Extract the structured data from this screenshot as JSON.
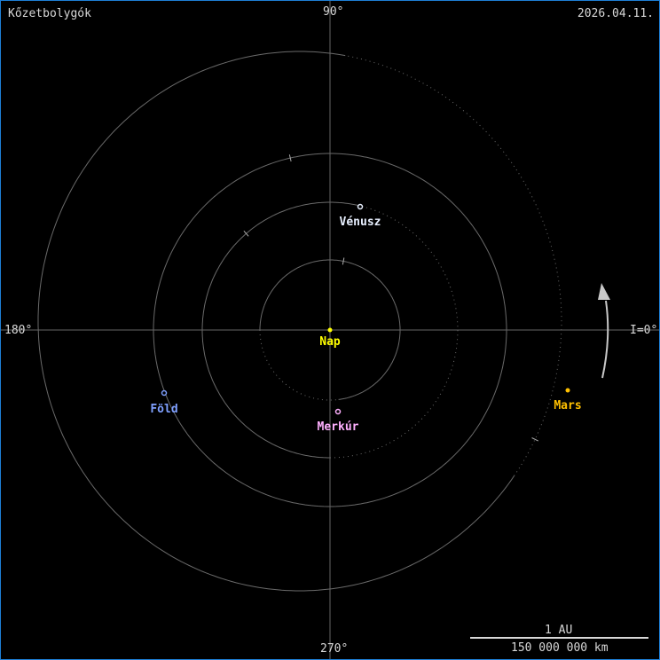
{
  "title": "Kőzetbolygók",
  "date": "2026.04.11.",
  "axis_labels": {
    "top": "90°",
    "left": "180°",
    "bottom": "270°",
    "right": "I=0°"
  },
  "scale": {
    "top": "1 AU",
    "bottom": "150 000 000 km"
  },
  "sun": {
    "label": "Nap",
    "color": "#ffff00"
  },
  "planets": [
    {
      "name": "Merkúr",
      "color": "#ffb0ff"
    },
    {
      "name": "Vénusz",
      "color": "#e8f0ff"
    },
    {
      "name": "Föld",
      "color": "#7fa0ff"
    },
    {
      "name": "Mars",
      "color": "#ffc000"
    }
  ],
  "colors": {
    "orbit": "#6a6a6a",
    "axis": "#666666",
    "text": "#d8d8d8",
    "arrow": "#c8c8c8",
    "border": "#1e7fd6"
  },
  "motion_direction": "counterclockwise"
}
